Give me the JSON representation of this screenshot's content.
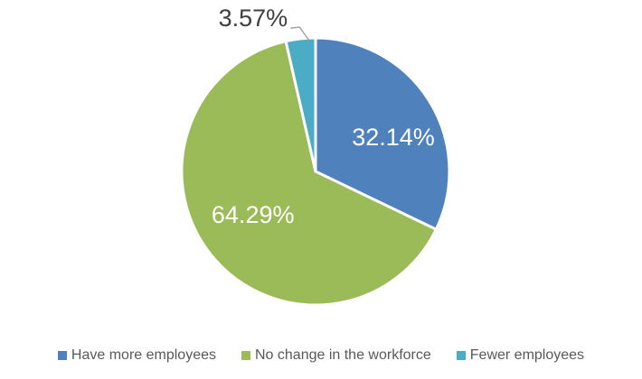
{
  "chart_data": {
    "type": "pie",
    "title": "",
    "categories": [
      "Have more employees",
      "No change in the workforce",
      "Fewer employees"
    ],
    "values": [
      32.14,
      64.29,
      3.57
    ],
    "data_labels": [
      "32.14%",
      "64.29%",
      "3.57%"
    ],
    "colors": [
      "#4F81BD",
      "#9BBB59",
      "#4BACC6"
    ],
    "start_angle_deg": 0,
    "direction": "clockwise",
    "label_placement": [
      "inside",
      "inside",
      "outside"
    ],
    "inside_label_color": "#FFFFFF",
    "outside_label_color": "#3F3F3F",
    "slice_border_color": "#FFFFFF",
    "leader_line_color": "#A6A6A6",
    "background_color": "#FFFFFF",
    "legend_position": "bottom",
    "legend": {
      "text_color": "#595959",
      "items": [
        {
          "label": "Have more employees",
          "color": "#4F81BD"
        },
        {
          "label": "No change in the workforce",
          "color": "#9BBB59"
        },
        {
          "label": "Fewer employees",
          "color": "#4BACC6"
        }
      ]
    }
  }
}
